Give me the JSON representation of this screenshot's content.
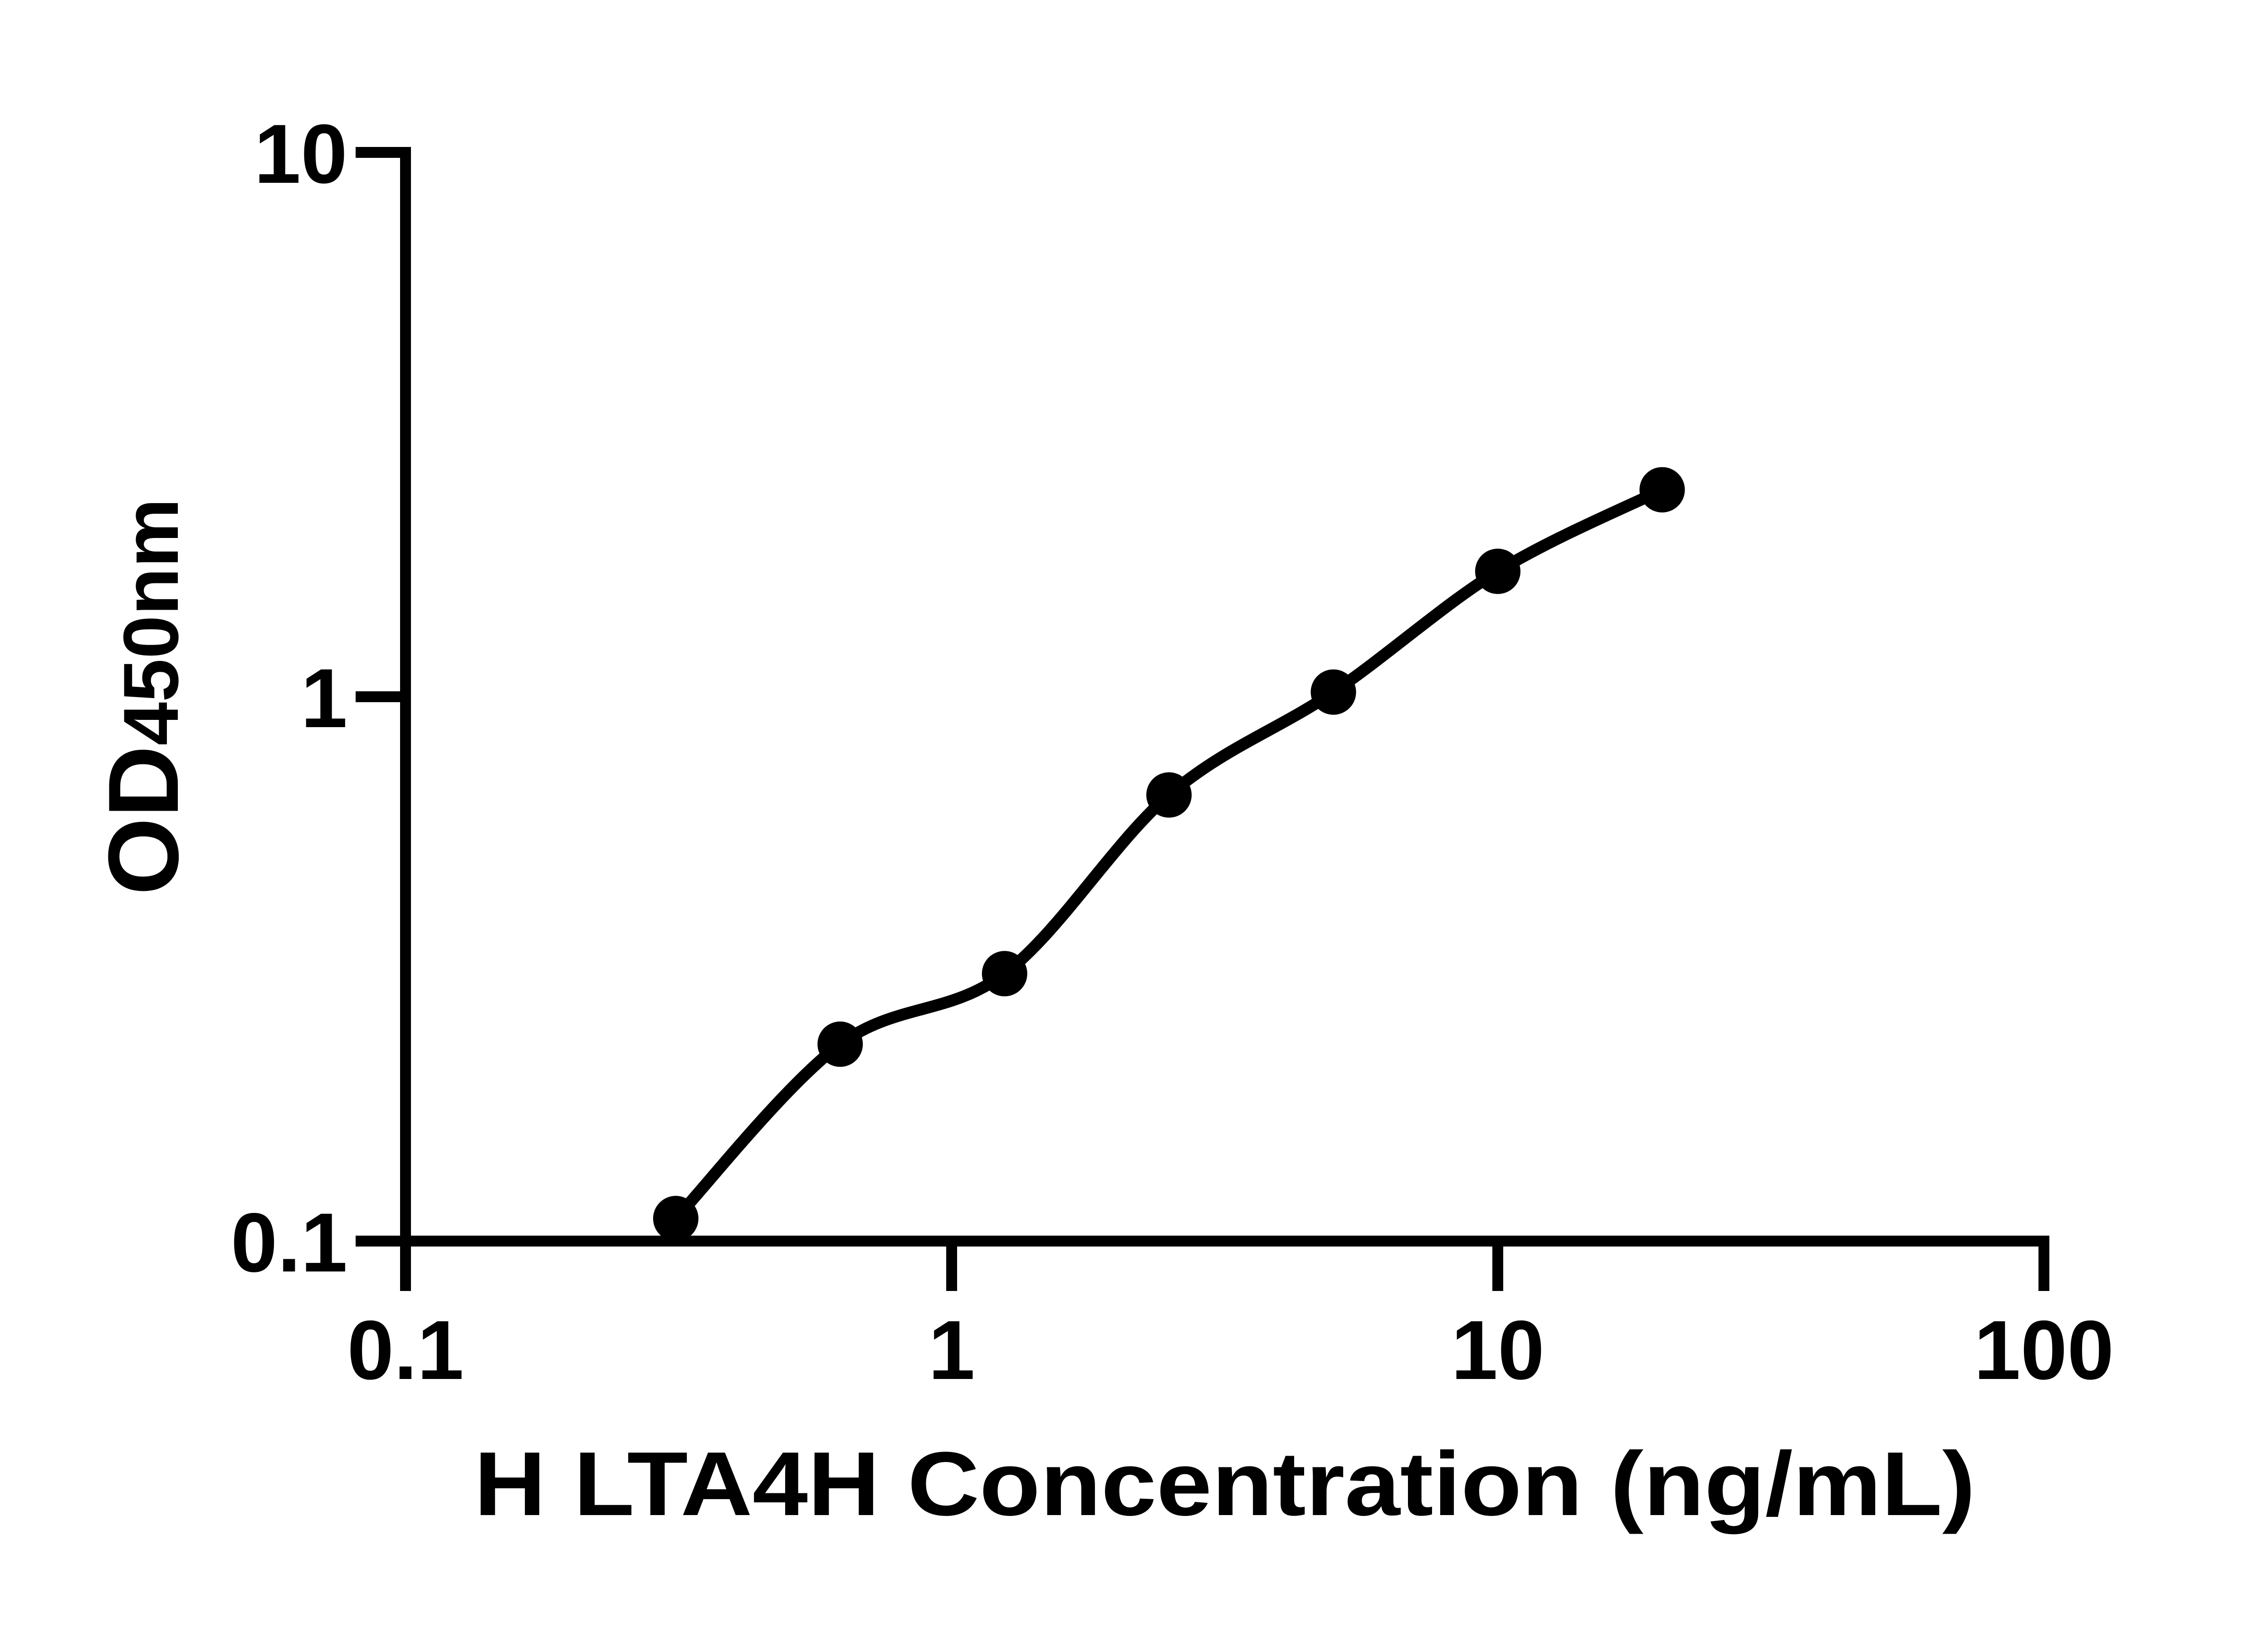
{
  "chart_data": {
    "type": "scatter",
    "title": "",
    "xlabel": "H LTA4H Concentration (ng/mL)",
    "ylabel": "OD450nm",
    "ylabel_main": "OD",
    "ylabel_sub": "450nm",
    "x_scale": "log",
    "y_scale": "log",
    "xlim": [
      0.1,
      100
    ],
    "ylim": [
      0.1,
      10
    ],
    "x": [
      0.3125,
      0.625,
      1.25,
      2.5,
      5,
      10,
      20
    ],
    "y": [
      0.11,
      0.23,
      0.31,
      0.66,
      1.02,
      1.7,
      2.4
    ],
    "x_ticks": [
      {
        "value": 0.1,
        "label": "0.1"
      },
      {
        "value": 1,
        "label": "1"
      },
      {
        "value": 10,
        "label": "10"
      },
      {
        "value": 100,
        "label": "100"
      }
    ],
    "y_ticks": [
      {
        "value": 0.1,
        "label": "0.1"
      },
      {
        "value": 1,
        "label": "1"
      },
      {
        "value": 10,
        "label": "10"
      }
    ],
    "legend": null,
    "grid": "off",
    "marker": "filled-circle",
    "fit_curve": true,
    "series_color": "#000000",
    "axis_color": "#000000",
    "background_color": "#ffffff"
  }
}
